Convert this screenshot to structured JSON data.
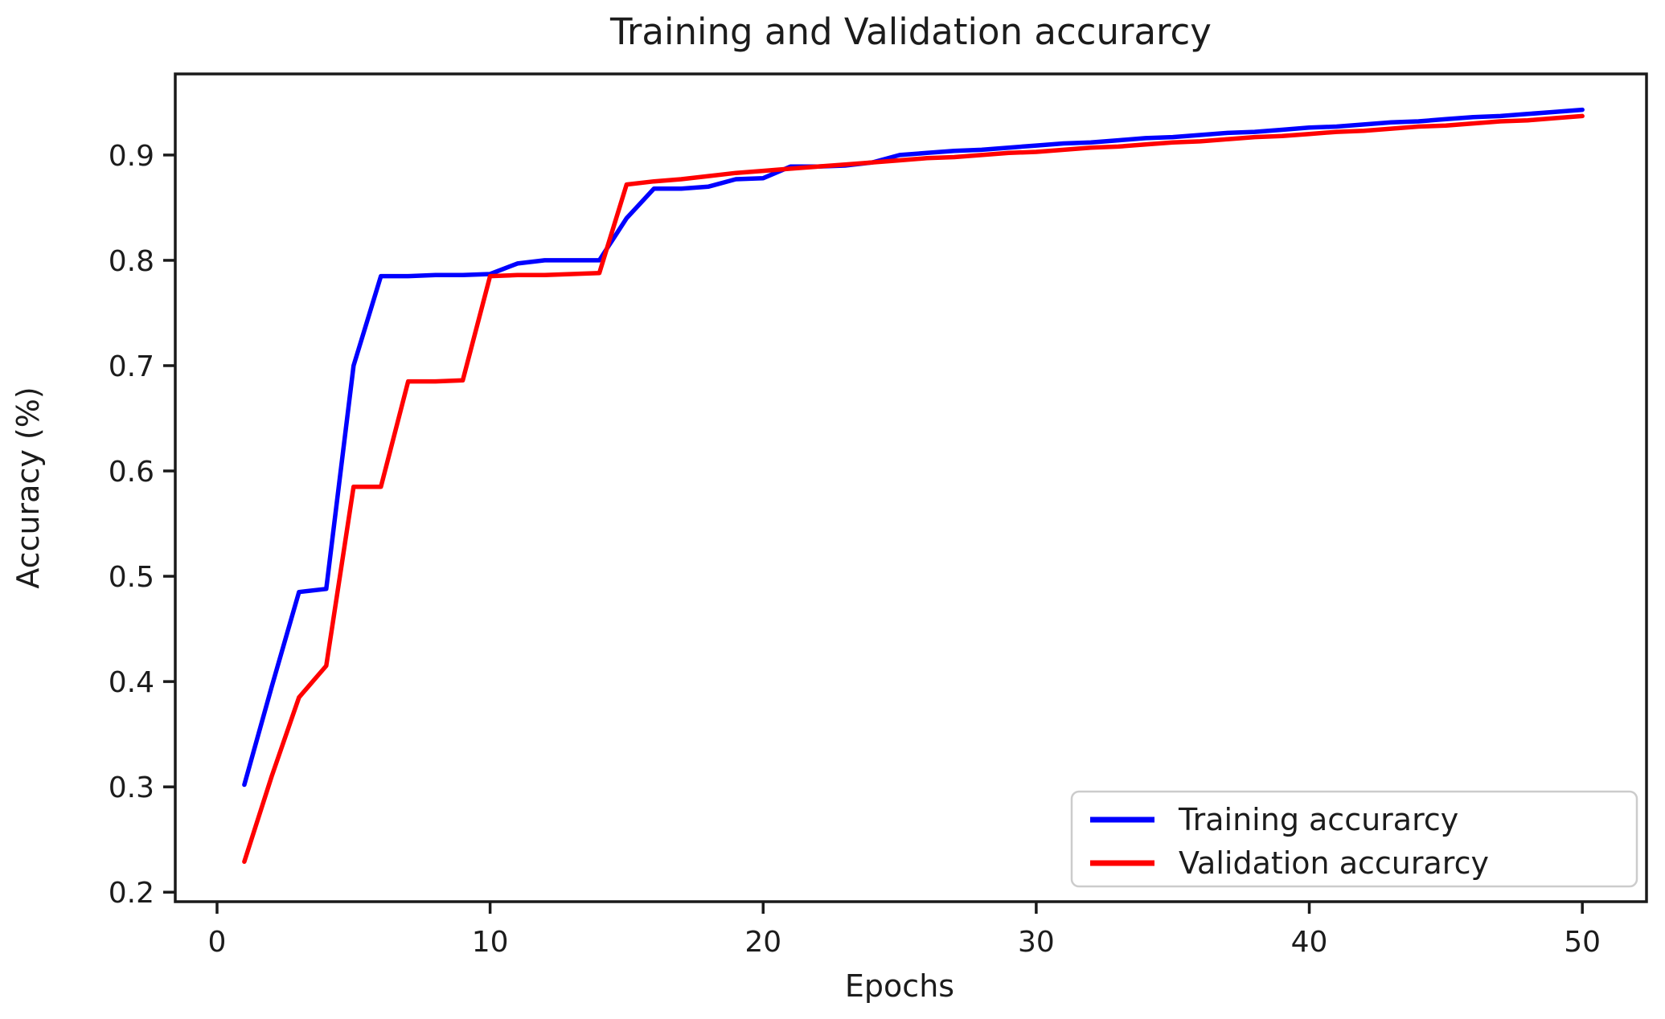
{
  "chart_data": {
    "type": "line",
    "title": "Training and Validation accurarcy",
    "xlabel": "Epochs",
    "ylabel": "Accuracy (%)",
    "grid": false,
    "legend_position": "lower right",
    "legend_border_color": "#cccccc",
    "axis_color": "#1a1a1a",
    "xlim": [
      -1.53,
      52.35
    ],
    "ylim": [
      0.191,
      0.977
    ],
    "xtick_values": [
      0,
      10,
      20,
      30,
      40,
      50
    ],
    "xtick_labels": [
      "0",
      "10",
      "20",
      "30",
      "40",
      "50"
    ],
    "ytick_values": [
      0.2,
      0.3,
      0.4,
      0.5,
      0.6,
      0.7,
      0.8,
      0.9
    ],
    "ytick_labels": [
      "0.2",
      "0.3",
      "0.4",
      "0.5",
      "0.6",
      "0.7",
      "0.8",
      "0.9"
    ],
    "x_epochs": [
      1,
      2,
      3,
      4,
      5,
      6,
      7,
      8,
      9,
      10,
      11,
      12,
      13,
      14,
      15,
      16,
      17,
      18,
      19,
      20,
      21,
      22,
      23,
      24,
      25,
      26,
      27,
      28,
      29,
      30,
      31,
      32,
      33,
      34,
      35,
      36,
      37,
      38,
      39,
      40,
      41,
      42,
      43,
      44,
      45,
      46,
      47,
      48,
      49,
      50
    ],
    "series": [
      {
        "name": "Training accurarcy",
        "color": "#0000ff",
        "values": [
          0.302,
          0.395,
          0.485,
          0.488,
          0.7,
          0.785,
          0.785,
          0.786,
          0.786,
          0.787,
          0.797,
          0.8,
          0.8,
          0.8,
          0.84,
          0.868,
          0.868,
          0.87,
          0.877,
          0.878,
          0.889,
          0.889,
          0.89,
          0.893,
          0.9,
          0.902,
          0.904,
          0.905,
          0.907,
          0.909,
          0.911,
          0.912,
          0.914,
          0.916,
          0.917,
          0.919,
          0.921,
          0.922,
          0.924,
          0.926,
          0.927,
          0.929,
          0.931,
          0.932,
          0.934,
          0.936,
          0.937,
          0.939,
          0.941,
          0.943
        ]
      },
      {
        "name": "Validation accurarcy",
        "color": "#ff0000",
        "values": [
          0.229,
          0.31,
          0.385,
          0.415,
          0.585,
          0.585,
          0.685,
          0.685,
          0.686,
          0.785,
          0.786,
          0.786,
          0.787,
          0.788,
          0.872,
          0.875,
          0.877,
          0.88,
          0.883,
          0.885,
          0.887,
          0.889,
          0.891,
          0.893,
          0.895,
          0.897,
          0.898,
          0.9,
          0.902,
          0.903,
          0.905,
          0.907,
          0.908,
          0.91,
          0.912,
          0.913,
          0.915,
          0.917,
          0.918,
          0.92,
          0.922,
          0.923,
          0.925,
          0.927,
          0.928,
          0.93,
          0.932,
          0.933,
          0.935,
          0.937
        ]
      }
    ]
  }
}
